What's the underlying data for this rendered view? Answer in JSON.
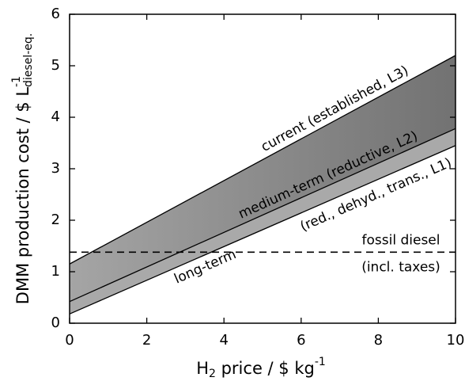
{
  "chart_data": {
    "type": "line",
    "x_label_parts": [
      "H",
      "2",
      " price / $ kg",
      "-1"
    ],
    "y_label_parts": [
      "DMM production cost / $ L",
      "-1",
      "diesel-eq."
    ],
    "x": [
      0,
      10
    ],
    "series": [
      {
        "color": "#000000",
        "values": [
          1.15,
          5.2
        ]
      },
      {
        "color": "#000000",
        "values": [
          0.42,
          3.78
        ]
      },
      {
        "color": "#000000",
        "values": [
          0.18,
          3.45
        ]
      }
    ],
    "band_colors": [
      "#8c8c8c",
      "#a9a9a9"
    ],
    "reference_line": {
      "value": 1.38,
      "color": "#000000",
      "style": "dashed"
    },
    "annotations": [
      "current (established, L3)",
      "medium-term (reductive, L2)",
      "(red., dehyd., trans., L1)",
      "long-term",
      "fossil diesel",
      "(incl. taxes)"
    ],
    "xlim": [
      0,
      10
    ],
    "xticks": [
      0,
      2,
      4,
      6,
      8,
      10
    ],
    "ylim": [
      0,
      6
    ],
    "yticks": [
      0,
      1,
      2,
      3,
      4,
      5,
      6
    ]
  }
}
